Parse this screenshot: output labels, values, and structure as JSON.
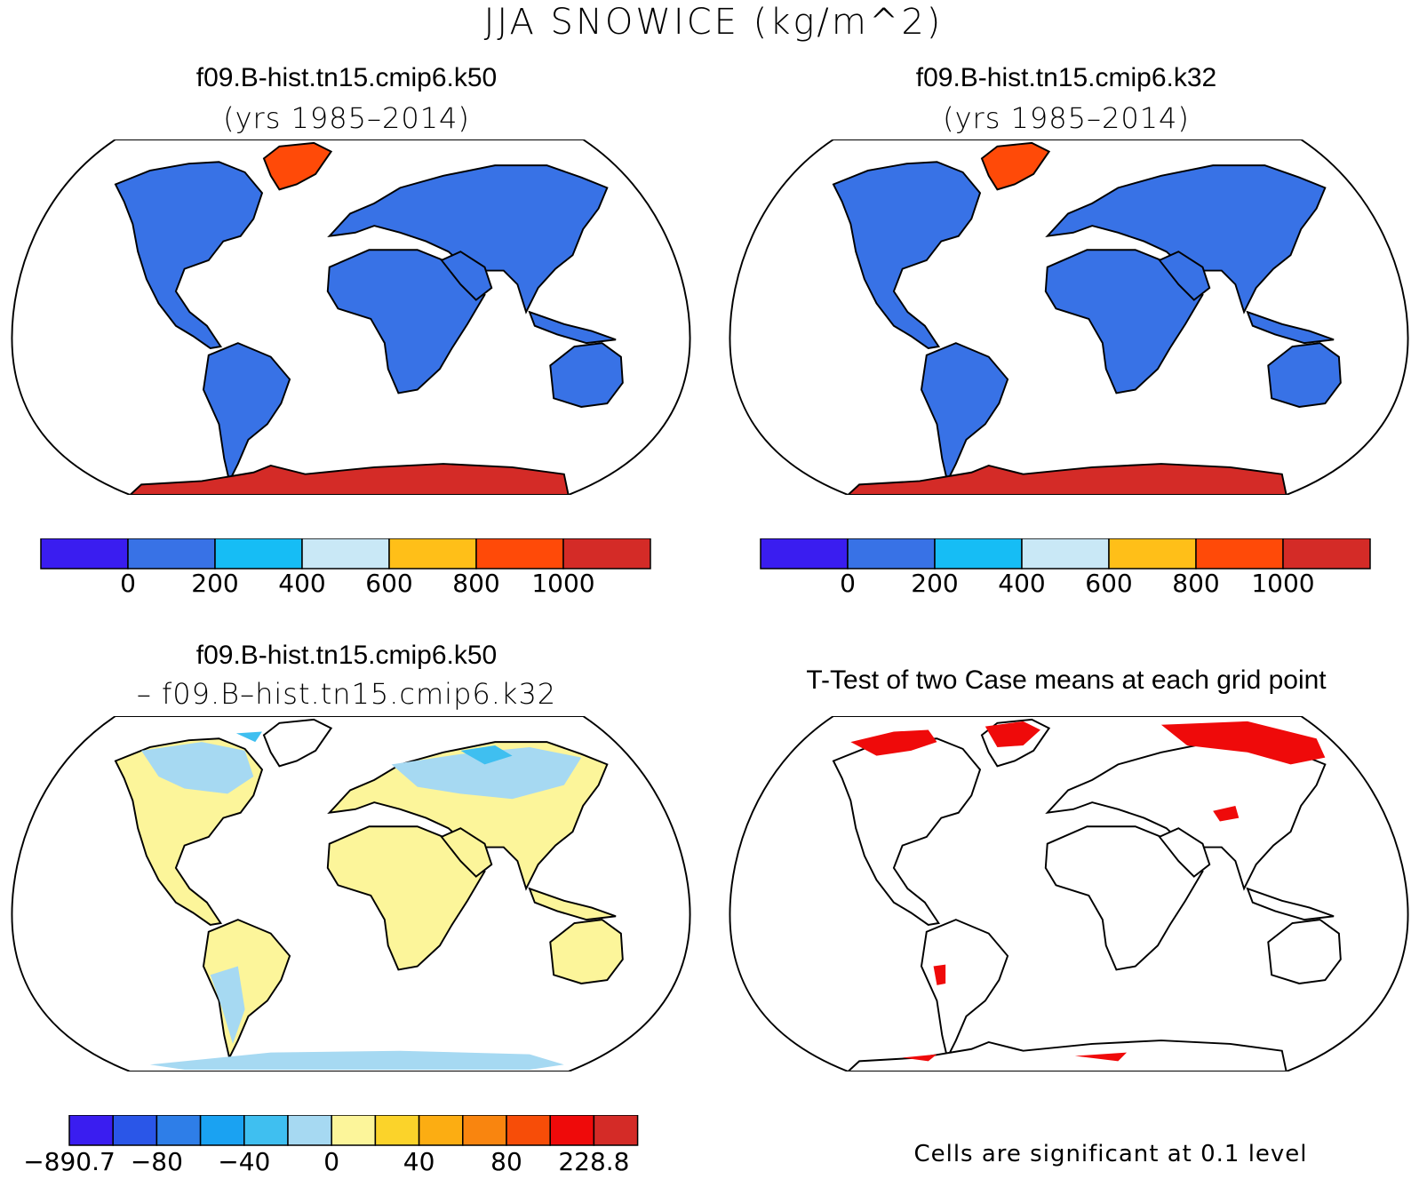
{
  "title": "JJA SNOWICE (kg/m^2)",
  "panels": [
    {
      "title": "f09.B-hist.tn15.cmip6.k50",
      "subtitle": "(yrs 1985–2014)"
    },
    {
      "title": "f09.B-hist.tn15.cmip6.k32",
      "subtitle": "(yrs 1985–2014)"
    },
    {
      "title": "f09.B-hist.tn15.cmip6.k50",
      "subtitle": "– f09.B–hist.tn15.cmip6.k32"
    },
    {
      "title": "T-Test of two Case means at each grid point",
      "subtitle": ""
    }
  ],
  "colorbars": {
    "main": {
      "colors": [
        "#3a1df0",
        "#3872e6",
        "#16bdf5",
        "#c9e8f6",
        "#ffbf18",
        "#ff4a08",
        "#d42b27"
      ],
      "labels": [
        "0",
        "200",
        "400",
        "600",
        "800",
        "1000"
      ]
    },
    "diff": {
      "colors": [
        "#3a1df0",
        "#2a56e8",
        "#2e7ee8",
        "#1aa2f2",
        "#3fbff0",
        "#a6d9f2",
        "#fcf59a",
        "#fbd32a",
        "#fcad12",
        "#f9850f",
        "#f74d08",
        "#ef0a0a",
        "#d42b27"
      ],
      "labels": [
        "-890.7",
        "-80",
        "-40",
        "0",
        "40",
        "80",
        "228.8"
      ]
    }
  },
  "significance_note": "Cells are significant at 0.1 level",
  "colors": {
    "land_main": "#3872e6",
    "greenland_k50": "#ff4a08",
    "greenland_k32": "#ff4a08",
    "antarctica": "#d42b27",
    "land_diff": "#fcf59a",
    "diff_blue": "#a6d9f2",
    "significant": "#ef0a0a"
  }
}
